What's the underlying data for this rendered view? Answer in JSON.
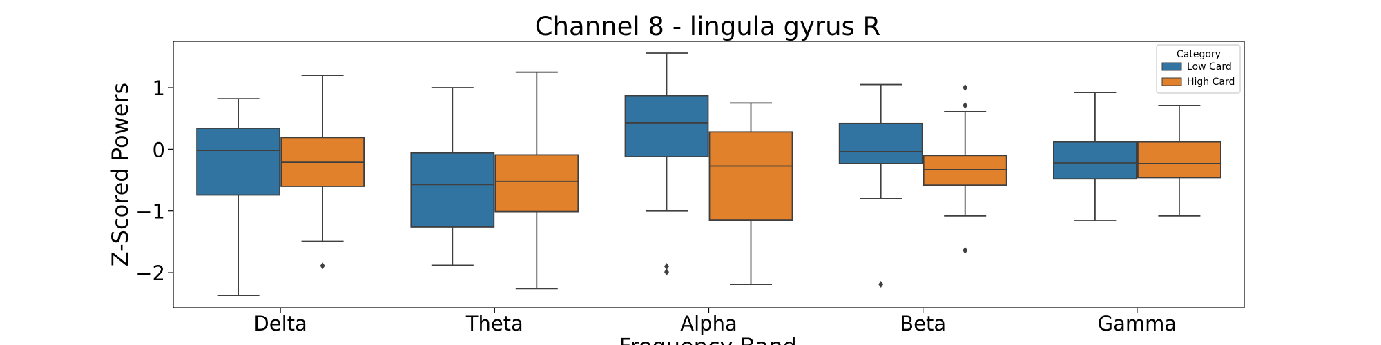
{
  "chart_data": {
    "type": "box",
    "title": "Channel 8 - lingula gyrus R",
    "xlabel": "Frequency Band",
    "ylabel": "Z-Scored Powers",
    "categories": [
      "Delta",
      "Theta",
      "Alpha",
      "Beta",
      "Gamma"
    ],
    "yticks": [
      1,
      0,
      -1,
      -2
    ],
    "ylim": [
      -2.57,
      1.75
    ],
    "legend": {
      "title": "Category",
      "position": "top-right"
    },
    "series": [
      {
        "name": "Low Card",
        "color": "#3274a1",
        "boxes": [
          {
            "whislo": -2.37,
            "q1": -0.74,
            "med": -0.02,
            "q3": 0.34,
            "whishi": 0.82,
            "fliers": []
          },
          {
            "whislo": -1.88,
            "q1": -1.26,
            "med": -0.57,
            "q3": -0.06,
            "whishi": 1.0,
            "fliers": []
          },
          {
            "whislo": -1.0,
            "q1": -0.12,
            "med": 0.43,
            "q3": 0.87,
            "whishi": 1.56,
            "fliers": [
              -1.9,
              -1.99
            ]
          },
          {
            "whislo": -0.8,
            "q1": -0.23,
            "med": -0.04,
            "q3": 0.42,
            "whishi": 1.05,
            "fliers": [
              -2.19
            ]
          },
          {
            "whislo": -1.16,
            "q1": -0.48,
            "med": -0.22,
            "q3": 0.12,
            "whishi": 0.92,
            "fliers": []
          }
        ]
      },
      {
        "name": "High Card",
        "color": "#e1812c",
        "boxes": [
          {
            "whislo": -1.49,
            "q1": -0.6,
            "med": -0.21,
            "q3": 0.19,
            "whishi": 1.2,
            "fliers": [
              -1.89
            ]
          },
          {
            "whislo": -2.26,
            "q1": -1.01,
            "med": -0.52,
            "q3": -0.09,
            "whishi": 1.25,
            "fliers": []
          },
          {
            "whislo": -2.19,
            "q1": -1.15,
            "med": -0.27,
            "q3": 0.28,
            "whishi": 0.75,
            "fliers": []
          },
          {
            "whislo": -1.08,
            "q1": -0.58,
            "med": -0.33,
            "q3": -0.1,
            "whishi": 0.61,
            "fliers": [
              1.0,
              0.71,
              -1.64
            ]
          },
          {
            "whislo": -1.08,
            "q1": -0.46,
            "med": -0.23,
            "q3": 0.12,
            "whishi": 0.71,
            "fliers": []
          }
        ]
      }
    ]
  }
}
